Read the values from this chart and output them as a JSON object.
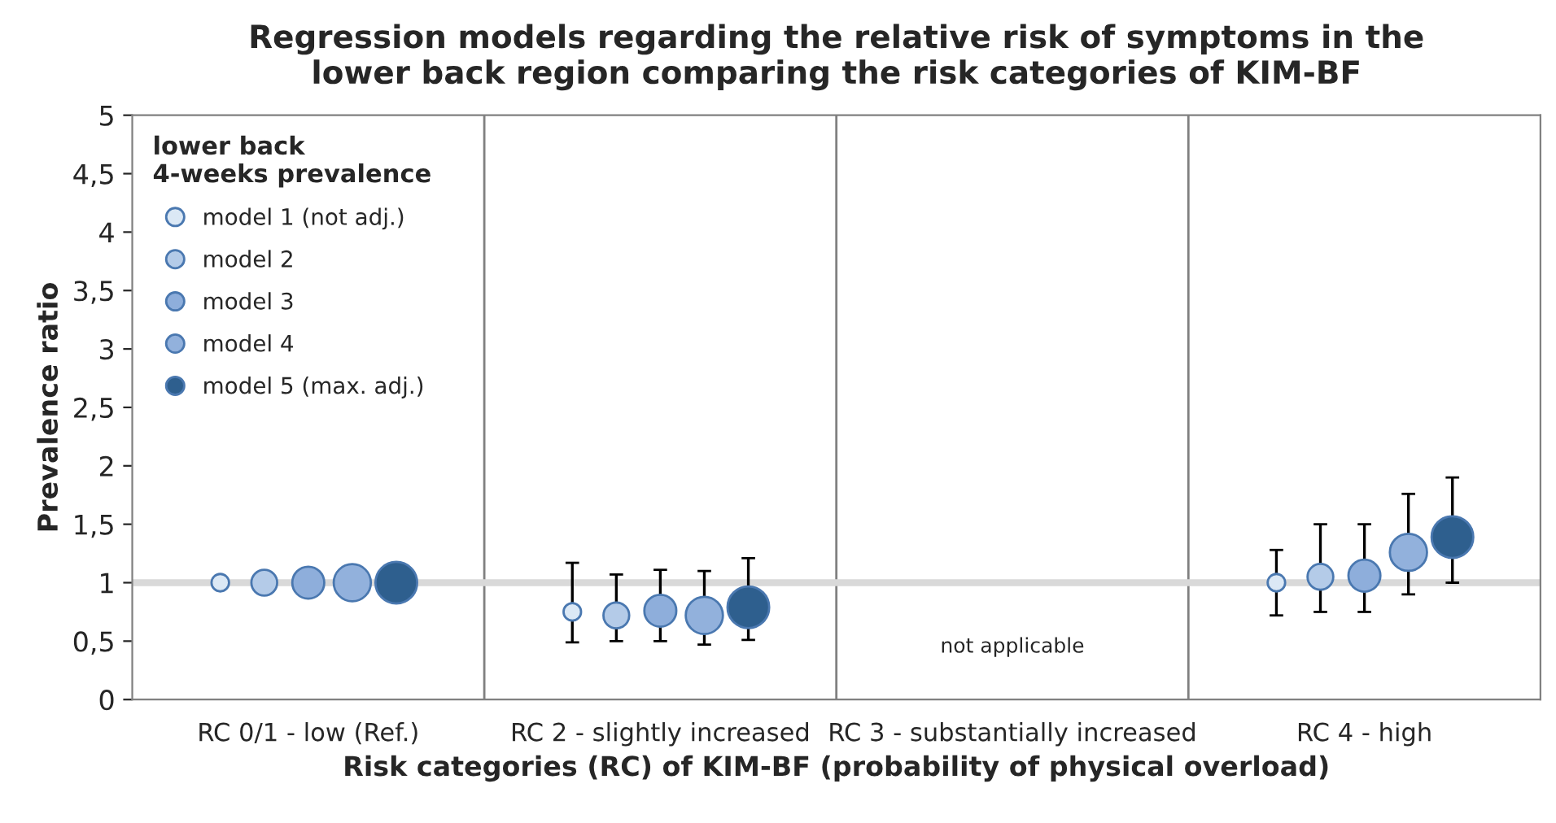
{
  "chart_data": {
    "type": "scatter",
    "title": "Regression models regarding the relative risk of symptoms in the\nlower back region comparing the risk categories of KIM-BF",
    "xlabel": "Risk categories (RC) of KIM-BF (probability of physical overload)",
    "ylabel": "Prevalence ratio",
    "legend_title": "lower back\n4-weeks prevalence",
    "categories": [
      "RC 0/1 - low (Ref.)",
      "RC 2 - slightly increased",
      "RC 3 - substantially increased",
      "RC 4 - high"
    ],
    "series": [
      {
        "name": "model 1 (not adj.)",
        "color": "#dbe8f5",
        "values": [
          1.0,
          0.75,
          null,
          1.0
        ],
        "errors": [
          null,
          [
            0.49,
            1.17
          ],
          null,
          [
            0.72,
            1.28
          ]
        ]
      },
      {
        "name": "model 2",
        "color": "#b4cbe8",
        "values": [
          1.0,
          0.72,
          null,
          1.05
        ],
        "errors": [
          null,
          [
            0.5,
            1.07
          ],
          null,
          [
            0.75,
            1.5
          ]
        ]
      },
      {
        "name": "model 3",
        "color": "#8eaedb",
        "values": [
          1.0,
          0.76,
          null,
          1.06
        ],
        "errors": [
          null,
          [
            0.5,
            1.11
          ],
          null,
          [
            0.75,
            1.5
          ]
        ]
      },
      {
        "name": "model 4",
        "color": "#92b1dc",
        "values": [
          1.0,
          0.72,
          null,
          1.26
        ],
        "errors": [
          null,
          [
            0.47,
            1.1
          ],
          null,
          [
            0.9,
            1.76
          ]
        ]
      },
      {
        "name": "model 5 (max. adj.)",
        "color": "#2e5f8e",
        "values": [
          1.0,
          0.79,
          null,
          1.39
        ],
        "errors": [
          null,
          [
            0.51,
            1.21
          ],
          null,
          [
            1.0,
            1.9
          ]
        ]
      }
    ],
    "ylim": [
      0,
      5
    ],
    "yticks": [
      {
        "value": 0,
        "label": "0"
      },
      {
        "value": 0.5,
        "label": "0,5"
      },
      {
        "value": 1,
        "label": "1"
      },
      {
        "value": 1.5,
        "label": "1,5"
      },
      {
        "value": 2,
        "label": "2"
      },
      {
        "value": 2.5,
        "label": "2,5"
      },
      {
        "value": 3,
        "label": "3"
      },
      {
        "value": 3.5,
        "label": "3,5"
      },
      {
        "value": 4,
        "label": "4"
      },
      {
        "value": 4.5,
        "label": "4,5"
      },
      {
        "value": 5,
        "label": "5"
      }
    ],
    "ref_lines": [
      {
        "axis": "y",
        "value": 1,
        "color": "#d9d9d9"
      }
    ],
    "annotations": [
      "not applicable"
    ],
    "marker": "circle",
    "legend": "top left",
    "grid": false
  }
}
